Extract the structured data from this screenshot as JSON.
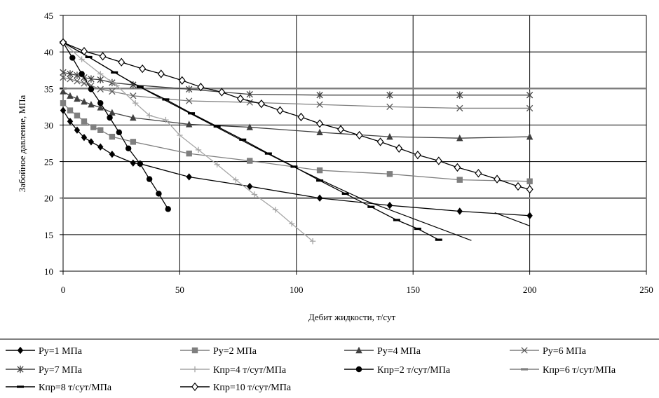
{
  "chart_data": {
    "type": "line",
    "title": "",
    "xlabel": "Дебит жидкости, т/сут",
    "ylabel": "Забойное давление, МПа",
    "xlim": [
      0,
      250
    ],
    "ylim": [
      10,
      45
    ],
    "xticks": [
      "0",
      "50",
      "100",
      "150",
      "200",
      "250"
    ],
    "yticks": [
      "10",
      "15",
      "20",
      "25",
      "30",
      "35",
      "40",
      "45"
    ],
    "grid": true,
    "legend_position": "bottom",
    "series": [
      {
        "name": "Ру=1 МПа",
        "marker": "diamond",
        "color": "#000000",
        "line_color": "#000000",
        "points": [
          [
            0,
            32
          ],
          [
            3,
            30.5
          ],
          [
            6,
            29.3
          ],
          [
            9,
            28.3
          ],
          [
            12,
            27.7
          ],
          [
            16,
            27
          ],
          [
            21,
            26
          ],
          [
            30,
            24.8
          ],
          [
            33,
            24.7
          ],
          [
            54,
            22.9
          ],
          [
            80,
            21.6
          ],
          [
            110,
            20
          ],
          [
            140,
            19
          ],
          [
            170,
            18.2
          ],
          [
            200,
            17.6
          ]
        ]
      },
      {
        "name": "Ру=2 МПа",
        "marker": "square",
        "color": "#7f7f7f",
        "line_color": "#7f7f7f",
        "points": [
          [
            0,
            33
          ],
          [
            3,
            32
          ],
          [
            6,
            31.3
          ],
          [
            9,
            30.5
          ],
          [
            13,
            29.7
          ],
          [
            16,
            29.3
          ],
          [
            21,
            28.4
          ],
          [
            30,
            27.7
          ],
          [
            54,
            26.1
          ],
          [
            80,
            25.1
          ],
          [
            110,
            23.8
          ],
          [
            140,
            23.3
          ],
          [
            170,
            22.5
          ],
          [
            200,
            22.3
          ]
        ]
      },
      {
        "name": "Ру=4 МПа",
        "marker": "triangle",
        "color": "#404040",
        "line_color": "#404040",
        "points": [
          [
            0,
            34.6
          ],
          [
            3,
            34
          ],
          [
            6,
            33.6
          ],
          [
            9,
            33.2
          ],
          [
            12,
            32.8
          ],
          [
            16,
            32.4
          ],
          [
            21,
            31.7
          ],
          [
            30,
            31
          ],
          [
            54,
            30.1
          ],
          [
            80,
            29.7
          ],
          [
            110,
            29
          ],
          [
            140,
            28.4
          ],
          [
            170,
            28.2
          ],
          [
            200,
            28.4
          ]
        ]
      },
      {
        "name": "Ру=6 МПа",
        "marker": "x",
        "color": "#595959",
        "line_color": "#7f7f7f",
        "points": [
          [
            0,
            36.5
          ],
          [
            3,
            36.3
          ],
          [
            6,
            36
          ],
          [
            9,
            35.7
          ],
          [
            12,
            35.4
          ],
          [
            16,
            34.9
          ],
          [
            21,
            34.6
          ],
          [
            30,
            34
          ],
          [
            54,
            33.3
          ],
          [
            80,
            33.1
          ],
          [
            110,
            32.8
          ],
          [
            140,
            32.5
          ],
          [
            170,
            32.3
          ],
          [
            200,
            32.3
          ]
        ]
      },
      {
        "name": "Ру=7 МПа",
        "marker": "star",
        "color": "#404040",
        "line_color": "#404040",
        "points": [
          [
            0,
            37.2
          ],
          [
            3,
            37
          ],
          [
            6,
            36.8
          ],
          [
            9,
            36.5
          ],
          [
            12,
            36.3
          ],
          [
            16,
            36.2
          ],
          [
            21,
            35.8
          ],
          [
            30,
            35.5
          ],
          [
            54,
            34.9
          ],
          [
            80,
            34.2
          ],
          [
            110,
            34.1
          ],
          [
            140,
            34.1
          ],
          [
            170,
            34.1
          ],
          [
            200,
            34.1
          ]
        ]
      },
      {
        "name": "Кпр=4 т/сут/МПа",
        "marker": "plus",
        "color": "#a6a6a6",
        "line_color": "#a6a6a6",
        "points": [
          [
            0,
            41.3
          ],
          [
            8,
            39
          ],
          [
            16,
            37
          ],
          [
            23,
            35.4
          ],
          [
            31,
            33
          ],
          [
            37,
            31.3
          ],
          [
            44,
            30.7
          ],
          [
            50,
            28.6
          ],
          [
            58,
            26.6
          ],
          [
            66,
            24.6
          ],
          [
            74,
            22.5
          ],
          [
            82,
            20.5
          ],
          [
            91,
            18.4
          ],
          [
            98,
            16.5
          ],
          [
            107,
            14.1
          ]
        ]
      },
      {
        "name": "Кпр=2 т/сут/МПа",
        "marker": "circle",
        "color": "#000000",
        "line_color": "#000000",
        "points": [
          [
            0,
            41.3
          ],
          [
            4,
            39.2
          ],
          [
            8,
            37
          ],
          [
            12,
            34.9
          ],
          [
            16,
            33
          ],
          [
            20,
            31
          ],
          [
            24,
            29
          ],
          [
            28,
            26.8
          ],
          [
            33,
            24.7
          ],
          [
            37,
            22.6
          ],
          [
            41,
            20.6
          ],
          [
            45,
            18.5
          ]
        ]
      },
      {
        "name": "Кпр=6 т/сут/МПа",
        "marker": "dash",
        "color": "#7f7f7f",
        "line_color": "#7f7f7f",
        "points": [
          [
            0,
            35
          ]
        ]
      },
      {
        "name": "Кпр=8 т/сут/МПа",
        "marker": "dash",
        "color": "#000000",
        "line_color": "#000000",
        "points": [
          [
            0,
            41.3
          ],
          [
            11,
            39.3
          ],
          [
            22,
            37.2
          ],
          [
            33,
            35.2
          ],
          [
            44,
            33.5
          ],
          [
            55,
            31.6
          ],
          [
            66,
            29.8
          ],
          [
            77,
            28
          ],
          [
            88,
            26.1
          ],
          [
            99,
            24.3
          ],
          [
            110,
            22.4
          ],
          [
            121,
            20.6
          ],
          [
            132,
            18.8
          ],
          [
            143,
            17
          ],
          [
            152,
            15.8
          ],
          [
            161,
            14.3
          ]
        ]
      },
      {
        "name": "Кпр=10 т/сут/МПа",
        "marker": "open-diamond",
        "color": "#000000",
        "line_color": "#000000",
        "points": [
          [
            0,
            41.3
          ],
          [
            9,
            40.1
          ],
          [
            17,
            39.4
          ],
          [
            25,
            38.6
          ],
          [
            34,
            37.7
          ],
          [
            42,
            37
          ],
          [
            51,
            36.1
          ],
          [
            59,
            35.2
          ],
          [
            68,
            34.5
          ],
          [
            76,
            33.6
          ],
          [
            85,
            32.9
          ],
          [
            93,
            32
          ],
          [
            102,
            31.1
          ],
          [
            110,
            30.2
          ],
          [
            119,
            29.4
          ],
          [
            127,
            28.6
          ],
          [
            136,
            27.7
          ],
          [
            144,
            26.8
          ],
          [
            152,
            25.9
          ],
          [
            161,
            25.1
          ],
          [
            169,
            24.2
          ],
          [
            178,
            23.4
          ],
          [
            186,
            22.6
          ],
          [
            195,
            21.6
          ],
          [
            200,
            21.2
          ]
        ]
      }
    ],
    "horizontal_lines": [
      {
        "y": 35,
        "color": "#7f7f7f",
        "series": "Кпр=6 т/сут/МПа"
      },
      {
        "y": 20,
        "color": "#7f7f7f"
      }
    ],
    "trend_lines": [
      {
        "series": "Кпр=6 т/сут/МПа",
        "color": "#000000",
        "points": [
          [
            0,
            41.3
          ],
          [
            10,
            39.5
          ],
          [
            20,
            37.6
          ],
          [
            30,
            35.7
          ],
          [
            40,
            34
          ],
          [
            55,
            31.5
          ],
          [
            70,
            29
          ],
          [
            85,
            26.5
          ],
          [
            100,
            24.1
          ],
          [
            115,
            21.8
          ],
          [
            130,
            19.6
          ],
          [
            145,
            17.8
          ],
          [
            160,
            16
          ],
          [
            170,
            14.8
          ],
          [
            175,
            14.2
          ],
          [
            185,
            18
          ],
          [
            200,
            16.2
          ]
        ]
      }
    ]
  }
}
